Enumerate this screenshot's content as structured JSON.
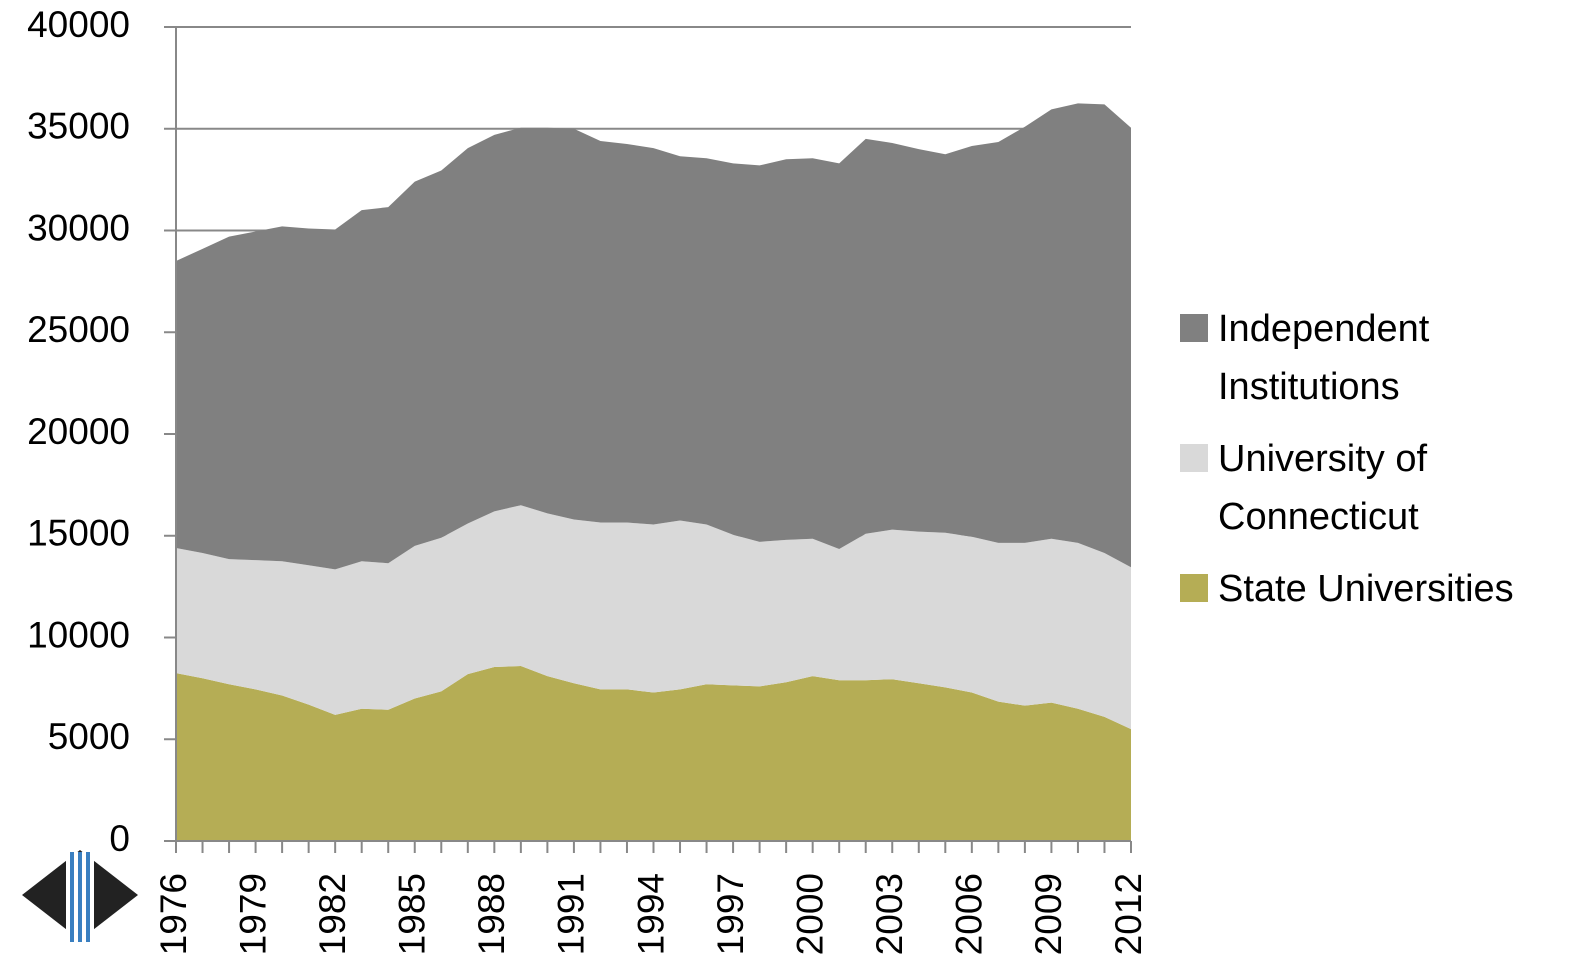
{
  "chart_data": {
    "type": "stacked_area",
    "x": [
      1976,
      1977,
      1978,
      1979,
      1980,
      1981,
      1982,
      1983,
      1984,
      1985,
      1986,
      1987,
      1988,
      1989,
      1990,
      1991,
      1992,
      1993,
      1994,
      1995,
      1996,
      1997,
      1998,
      1999,
      2000,
      2001,
      2002,
      2003,
      2004,
      2005,
      2006,
      2007,
      2008,
      2009,
      2010,
      2011,
      2012
    ],
    "series": [
      {
        "name": "State Universities",
        "color": "#b5ad55",
        "values": [
          8250,
          8000,
          7700,
          7450,
          7150,
          6700,
          6200,
          6500,
          6450,
          7000,
          7350,
          8200,
          8550,
          8600,
          8100,
          7750,
          7450,
          7450,
          7300,
          7450,
          7700,
          7650,
          7600,
          7800,
          8100,
          7900,
          7900,
          7950,
          7750,
          7550,
          7300,
          6850,
          6650,
          6800,
          6500,
          6100,
          5500
        ]
      },
      {
        "name": "University of Connecticut",
        "color": "#d9d9d9",
        "values": [
          6150,
          6150,
          6150,
          6350,
          6600,
          6850,
          7150,
          7250,
          7200,
          7500,
          7550,
          7400,
          7650,
          7900,
          8000,
          8050,
          8200,
          8200,
          8250,
          8300,
          7850,
          7400,
          7100,
          7000,
          6750,
          6450,
          7200,
          7350,
          7450,
          7600,
          7650,
          7800,
          8000,
          8050,
          8150,
          8050,
          7950
        ]
      },
      {
        "name": "Independent Institutions",
        "color": "#808080",
        "values": [
          14100,
          14950,
          15850,
          16150,
          16450,
          16550,
          16700,
          17250,
          17500,
          17900,
          18050,
          18450,
          18500,
          18550,
          18950,
          19200,
          18750,
          18600,
          18500,
          17900,
          18000,
          18250,
          18500,
          18700,
          18700,
          18950,
          19400,
          19000,
          18800,
          18600,
          19200,
          19700,
          20450,
          21100,
          21600,
          22050,
          21600
        ]
      }
    ],
    "xlim": [
      1976,
      2012
    ],
    "xticks": [
      1976,
      1979,
      1982,
      1985,
      1988,
      1991,
      1994,
      1997,
      2000,
      2003,
      2006,
      2009,
      2012
    ],
    "ylim": [
      0,
      40000
    ],
    "yticks": [
      0,
      5000,
      10000,
      15000,
      20000,
      25000,
      30000,
      35000,
      40000
    ],
    "grid": true,
    "legend": "right"
  }
}
